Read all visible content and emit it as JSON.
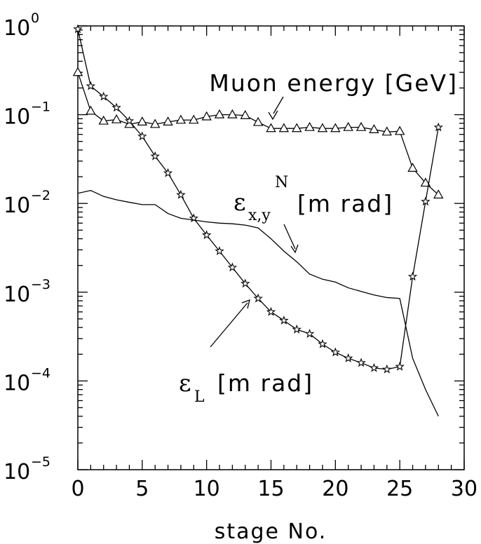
{
  "chart_data": {
    "type": "line",
    "title": "",
    "xlabel": "stage No.",
    "ylabel": "",
    "xlim": [
      0,
      30
    ],
    "ylim": [
      1e-05,
      1
    ],
    "yscale": "log",
    "x_ticks": [
      "0",
      "5",
      "10",
      "15",
      "20",
      "25",
      "30"
    ],
    "y_ticks": [
      {
        "base": "10",
        "exp": "0"
      },
      {
        "base": "10",
        "exp": "−1"
      },
      {
        "base": "10",
        "exp": "−2"
      },
      {
        "base": "10",
        "exp": "−3"
      },
      {
        "base": "10",
        "exp": "−4"
      },
      {
        "base": "10",
        "exp": "−5"
      }
    ],
    "series": [
      {
        "name": "Muon energy [GeV]",
        "marker": "triangle",
        "x": [
          0,
          1,
          2,
          3,
          4,
          5,
          6,
          7,
          8,
          9,
          10,
          11,
          12,
          13,
          14,
          15,
          16,
          17,
          18,
          19,
          20,
          21,
          22,
          23,
          24,
          25,
          26,
          27,
          28
        ],
        "y": [
          0.3,
          0.11,
          0.085,
          0.088,
          0.078,
          0.083,
          0.078,
          0.083,
          0.087,
          0.087,
          0.095,
          0.1,
          0.1,
          0.098,
          0.082,
          0.07,
          0.07,
          0.07,
          0.072,
          0.07,
          0.07,
          0.072,
          0.072,
          0.068,
          0.064,
          0.065,
          0.025,
          0.017,
          0.0125
        ]
      },
      {
        "name": "εL [m rad]",
        "marker": "star",
        "x": [
          0,
          1,
          2,
          3,
          4,
          5,
          6,
          7,
          8,
          9,
          10,
          11,
          12,
          13,
          14,
          15,
          16,
          17,
          18,
          19,
          20,
          21,
          22,
          23,
          24,
          25,
          26,
          27,
          28
        ],
        "y": [
          0.92,
          0.21,
          0.16,
          0.12,
          0.085,
          0.057,
          0.034,
          0.022,
          0.0125,
          0.0068,
          0.0044,
          0.0029,
          0.0019,
          0.00125,
          0.00085,
          0.0006,
          0.00048,
          0.00038,
          0.00034,
          0.00026,
          0.00021,
          0.00018,
          0.00016,
          0.00014,
          0.000135,
          0.000145,
          0.0015,
          0.0105,
          0.072
        ]
      },
      {
        "name": "εx,yN [m rad]",
        "marker": "none",
        "x": [
          0,
          1,
          2,
          3,
          4,
          5,
          6,
          7,
          8,
          9,
          10,
          11,
          12,
          13,
          14,
          15,
          16,
          17,
          18,
          19,
          20,
          21,
          22,
          23,
          24,
          25,
          26,
          27,
          28
        ],
        "y": [
          0.013,
          0.014,
          0.012,
          0.011,
          0.0103,
          0.0097,
          0.0097,
          0.0077,
          0.0068,
          0.0065,
          0.0062,
          0.006,
          0.0059,
          0.0057,
          0.0053,
          0.004,
          0.0029,
          0.0022,
          0.0016,
          0.0014,
          0.0013,
          0.00112,
          0.00102,
          0.00093,
          0.00087,
          0.00085,
          0.00018,
          8e-05,
          4e-05
        ]
      }
    ],
    "annotations": {
      "muon": {
        "text": "Muon energy [GeV]"
      },
      "emit_t": {
        "symbol": "ε",
        "sub": "x,y",
        "sup": "N",
        "text": "[m rad]"
      },
      "emit_l": {
        "symbol": "ε",
        "sub": "L",
        "text": "[m rad]"
      }
    },
    "grid": false,
    "legend": "none"
  }
}
